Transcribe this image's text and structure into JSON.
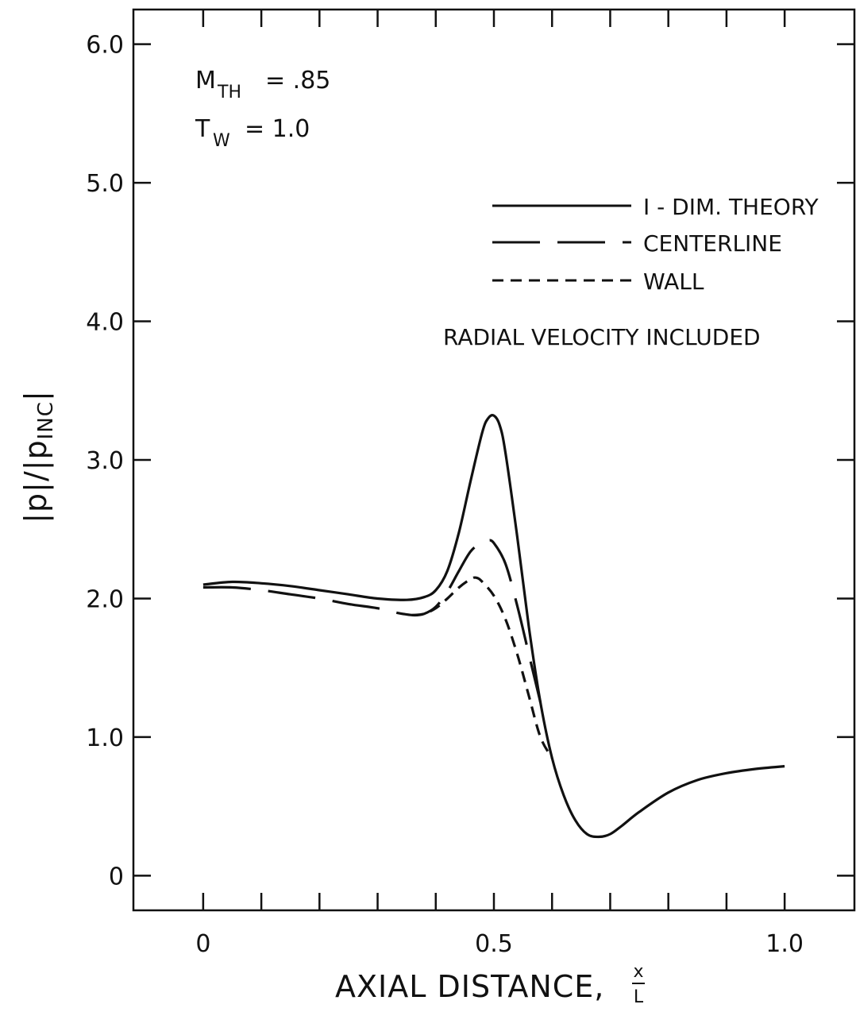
{
  "chart_data": {
    "type": "line",
    "xlabel": "AXIAL DISTANCE,",
    "xlabel_frac_num": "x",
    "xlabel_frac_den": "L",
    "ylabel": "|p|/|p",
    "ylabel_sub": "INC",
    "ylabel_end": "|",
    "xlim": [
      -0.12,
      1.12
    ],
    "ylim": [
      -0.25,
      6.25
    ],
    "x_ticks": [
      0,
      0.5,
      1.0
    ],
    "x_tick_labels": [
      "0",
      "0.5",
      "1.0"
    ],
    "x_minor_ticks": [
      0,
      0.1,
      0.2,
      0.3,
      0.4,
      0.5,
      0.6,
      0.7,
      0.8,
      0.9,
      1.0
    ],
    "y_ticks": [
      0,
      1,
      2,
      3,
      4,
      5,
      6
    ],
    "y_tick_labels": [
      "0",
      "1.0",
      "2.0",
      "3.0",
      "4.0",
      "5.0",
      "6.0"
    ],
    "grid": false,
    "legend_position": "top-right",
    "annotations": {
      "mach_main": "M",
      "mach_sub": "TH",
      "mach_value": "= .85",
      "temp_main": "T",
      "temp_sub": "W",
      "temp_value": "= 1.0",
      "note": "RADIAL VELOCITY INCLUDED"
    },
    "series": [
      {
        "name": "I - DIM. THEORY",
        "style": "solid",
        "x": [
          0.0,
          0.05,
          0.1,
          0.15,
          0.2,
          0.25,
          0.3,
          0.35,
          0.38,
          0.4,
          0.42,
          0.44,
          0.46,
          0.48,
          0.49,
          0.5,
          0.51,
          0.52,
          0.54,
          0.56,
          0.58,
          0.6,
          0.62,
          0.64,
          0.66,
          0.68,
          0.7,
          0.72,
          0.75,
          0.8,
          0.85,
          0.9,
          0.95,
          1.0
        ],
        "y": [
          2.1,
          2.12,
          2.11,
          2.09,
          2.06,
          2.03,
          2.0,
          1.99,
          2.01,
          2.06,
          2.2,
          2.48,
          2.85,
          3.2,
          3.3,
          3.32,
          3.25,
          3.05,
          2.45,
          1.8,
          1.25,
          0.85,
          0.58,
          0.4,
          0.3,
          0.28,
          0.3,
          0.36,
          0.46,
          0.6,
          0.69,
          0.74,
          0.77,
          0.79
        ]
      },
      {
        "name": "CENTERLINE",
        "style": "long-dash",
        "x": [
          0.0,
          0.05,
          0.1,
          0.15,
          0.2,
          0.25,
          0.3,
          0.33,
          0.36,
          0.38,
          0.4,
          0.42,
          0.44,
          0.46,
          0.48,
          0.49,
          0.5,
          0.52,
          0.54,
          0.56,
          0.58
        ],
        "y": [
          2.08,
          2.08,
          2.06,
          2.03,
          2.0,
          1.96,
          1.93,
          1.9,
          1.88,
          1.89,
          1.94,
          2.05,
          2.2,
          2.34,
          2.41,
          2.42,
          2.4,
          2.25,
          1.95,
          1.6,
          1.25
        ]
      },
      {
        "name": "WALL",
        "style": "short-dash",
        "x": [
          0.36,
          0.38,
          0.4,
          0.42,
          0.44,
          0.46,
          0.47,
          0.48,
          0.5,
          0.52,
          0.54,
          0.56,
          0.58,
          0.6
        ],
        "y": [
          1.88,
          1.89,
          1.93,
          2.0,
          2.08,
          2.14,
          2.15,
          2.12,
          2.02,
          1.85,
          1.6,
          1.3,
          1.0,
          0.85
        ]
      }
    ]
  }
}
